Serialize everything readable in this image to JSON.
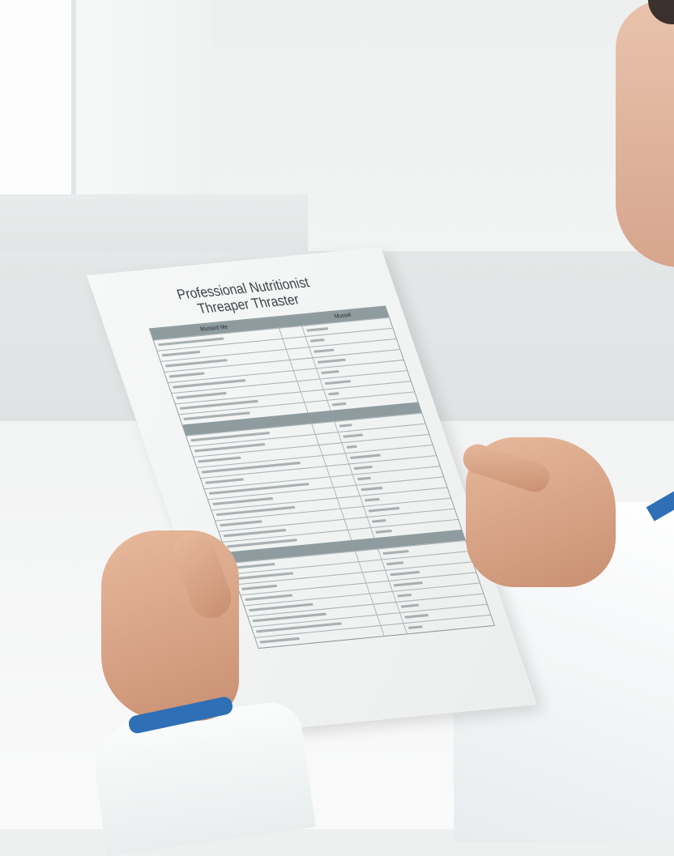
{
  "scene": {
    "description_colors": {
      "wall": "#eef0f0",
      "skin": "#d9a98c",
      "cuff": "#2e6fb5",
      "table_header": "#8e9c9f"
    }
  },
  "document": {
    "title_line1": "Professional Nutritionist",
    "title_line2": "Threaper Thraster",
    "table": {
      "header": [
        "Mustard Me",
        "",
        "Mussel"
      ],
      "sections": [
        {
          "rows": 8
        },
        {
          "rows": 11
        },
        {
          "rows": 8
        }
      ]
    }
  }
}
